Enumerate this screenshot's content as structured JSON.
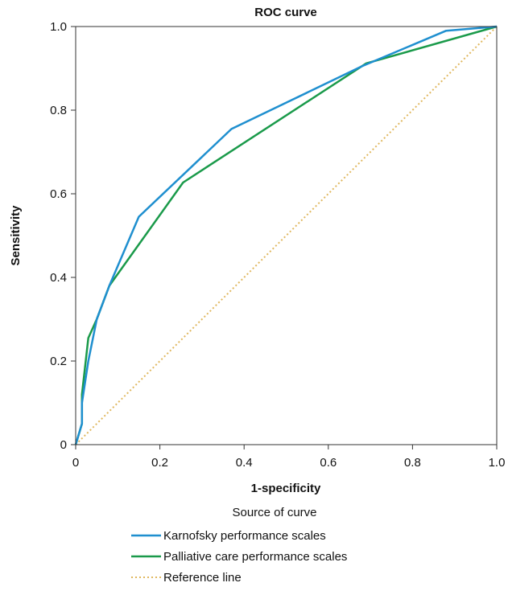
{
  "chart_data": {
    "type": "line",
    "title": "ROC curve",
    "xlabel": "1-specificity",
    "ylabel": "Sensitivity",
    "xlim": [
      0,
      1
    ],
    "ylim": [
      0,
      1
    ],
    "x_tick_labels": [
      "0",
      "0.2",
      "0.4",
      "0.6",
      "0.8",
      "1.0"
    ],
    "y_tick_labels": [
      "0",
      "0.2",
      "0.4",
      "0.6",
      "0.8",
      "1.0"
    ],
    "legend_title": "Source of curve",
    "legend_position": "bottom",
    "series": [
      {
        "name": "Karnofsky performance scales",
        "color": "#1f8fcf",
        "style": "solid",
        "points": [
          [
            0,
            0
          ],
          [
            0.015,
            0.05
          ],
          [
            0.015,
            0.1
          ],
          [
            0.03,
            0.2
          ],
          [
            0.05,
            0.3
          ],
          [
            0.08,
            0.38
          ],
          [
            0.15,
            0.545
          ],
          [
            0.37,
            0.755
          ],
          [
            0.68,
            0.905
          ],
          [
            0.88,
            0.99
          ],
          [
            1.0,
            1.0
          ]
        ]
      },
      {
        "name": "Palliative care performance scales",
        "color": "#1a9a4a",
        "style": "solid",
        "points": [
          [
            0,
            0
          ],
          [
            0.015,
            0.05
          ],
          [
            0.015,
            0.12
          ],
          [
            0.03,
            0.255
          ],
          [
            0.05,
            0.3
          ],
          [
            0.08,
            0.38
          ],
          [
            0.255,
            0.627
          ],
          [
            0.69,
            0.912
          ],
          [
            1.0,
            1.0
          ]
        ]
      },
      {
        "name": "Reference line",
        "color": "#e0b860",
        "style": "dotted",
        "points": [
          [
            0,
            0
          ],
          [
            1,
            1
          ]
        ]
      }
    ]
  }
}
